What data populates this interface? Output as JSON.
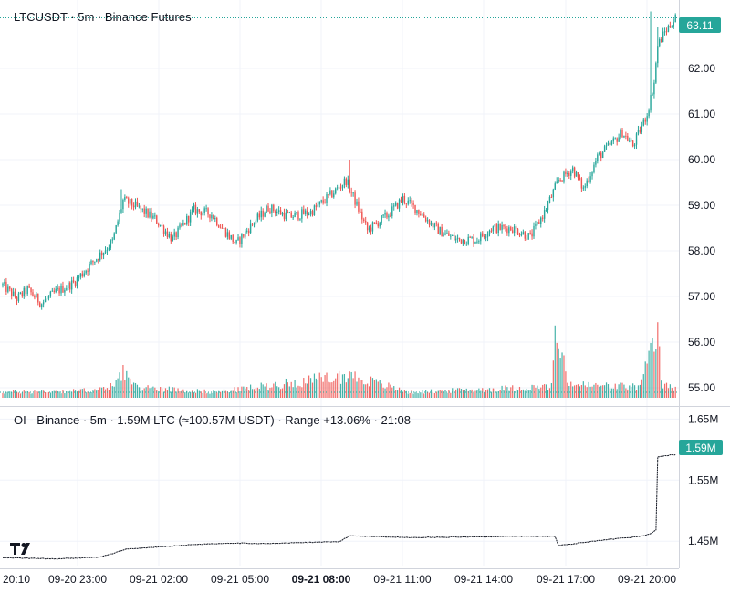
{
  "colors": {
    "up": "#26a69a",
    "down": "#ef5350",
    "oi_line": "#131722",
    "grid": "#f0f3fa",
    "badge": "#26a69a"
  },
  "chart_data": [
    {
      "type": "candlestick",
      "title": "LTCUSDT · 5m · Binance Futures",
      "symbol": "LTCUSDT",
      "interval": "5m",
      "exchange": "Binance Futures",
      "last_price": "63.11",
      "ylim": [
        54.6,
        63.5
      ],
      "y_ticks": [
        "55.00",
        "56.00",
        "57.00",
        "58.00",
        "59.00",
        "60.00",
        "61.00",
        "62.00"
      ],
      "anchors": [
        [
          0,
          57.25
        ],
        [
          8,
          56.95
        ],
        [
          14,
          57.15
        ],
        [
          22,
          56.85
        ],
        [
          30,
          57.1
        ],
        [
          40,
          57.3
        ],
        [
          52,
          57.8
        ],
        [
          62,
          58.2
        ],
        [
          68,
          59.1
        ],
        [
          74,
          59.0
        ],
        [
          86,
          58.7
        ],
        [
          96,
          58.25
        ],
        [
          108,
          58.9
        ],
        [
          118,
          58.8
        ],
        [
          124,
          58.5
        ],
        [
          132,
          58.15
        ],
        [
          140,
          58.55
        ],
        [
          150,
          58.95
        ],
        [
          162,
          58.75
        ],
        [
          174,
          58.85
        ],
        [
          186,
          59.25
        ],
        [
          194,
          59.55
        ],
        [
          200,
          59.0
        ],
        [
          206,
          58.45
        ],
        [
          218,
          58.8
        ],
        [
          226,
          59.15
        ],
        [
          234,
          58.9
        ],
        [
          246,
          58.45
        ],
        [
          256,
          58.25
        ],
        [
          268,
          58.25
        ],
        [
          276,
          58.5
        ],
        [
          288,
          58.5
        ],
        [
          298,
          58.3
        ],
        [
          306,
          58.85
        ],
        [
          314,
          59.55
        ],
        [
          322,
          59.8
        ],
        [
          328,
          59.35
        ],
        [
          336,
          60.05
        ],
        [
          344,
          60.35
        ],
        [
          350,
          60.6
        ],
        [
          356,
          60.3
        ],
        [
          364,
          61.0
        ],
        [
          368,
          61.7
        ],
        [
          370,
          62.5
        ],
        [
          374,
          62.8
        ],
        [
          378,
          63.0
        ],
        [
          380,
          63.11
        ]
      ],
      "spikes": [
        [
          67,
          59.35
        ],
        [
          196,
          60.0
        ],
        [
          366,
          63.25
        ],
        [
          370,
          62.9
        ]
      ],
      "volume": [
        [
          0,
          1.0
        ],
        [
          40,
          1.2
        ],
        [
          60,
          1.6
        ],
        [
          68,
          5.0
        ],
        [
          74,
          2.0
        ],
        [
          120,
          1.0
        ],
        [
          196,
          4.0
        ],
        [
          230,
          1.0
        ],
        [
          310,
          2.0
        ],
        [
          312,
          11.0
        ],
        [
          320,
          2.5
        ],
        [
          330,
          2.2
        ],
        [
          360,
          2.0
        ],
        [
          370,
          11.5
        ],
        [
          372,
          2.5
        ],
        [
          380,
          1.5
        ]
      ],
      "volume_max": 12
    },
    {
      "type": "line",
      "title": "OI - Binance · 5m · 1.59M LTC (≈100.57M USDT) · Range +13.06% · 21:08",
      "series_name": "OI - Binance",
      "last_value": "1.59M",
      "ylim": [
        1.41,
        1.67
      ],
      "y_ticks": [
        "1.45M",
        "1.55M",
        "1.65M"
      ],
      "points": [
        [
          0,
          1.423
        ],
        [
          30,
          1.421
        ],
        [
          55,
          1.424
        ],
        [
          60,
          1.428
        ],
        [
          70,
          1.437
        ],
        [
          90,
          1.441
        ],
        [
          110,
          1.445
        ],
        [
          130,
          1.447
        ],
        [
          150,
          1.446
        ],
        [
          170,
          1.448
        ],
        [
          190,
          1.449
        ],
        [
          196,
          1.459
        ],
        [
          230,
          1.456
        ],
        [
          262,
          1.457
        ],
        [
          290,
          1.458
        ],
        [
          312,
          1.458
        ],
        [
          314,
          1.443
        ],
        [
          320,
          1.445
        ],
        [
          340,
          1.452
        ],
        [
          360,
          1.458
        ],
        [
          366,
          1.462
        ],
        [
          369,
          1.469
        ],
        [
          370,
          1.588
        ],
        [
          380,
          1.592
        ]
      ],
      "x_ticks": [
        {
          "label": "20:10",
          "bold": false
        },
        {
          "label": "09-20 23:00",
          "bold": false
        },
        {
          "label": "09-21 02:00",
          "bold": false
        },
        {
          "label": "09-21 05:00",
          "bold": false
        },
        {
          "label": "09-21 08:00",
          "bold": true
        },
        {
          "label": "09-21 11:00",
          "bold": false
        },
        {
          "label": "09-21 14:00",
          "bold": false
        },
        {
          "label": "09-21 17:00",
          "bold": false
        },
        {
          "label": "09-21 20:00",
          "bold": false
        }
      ]
    }
  ]
}
